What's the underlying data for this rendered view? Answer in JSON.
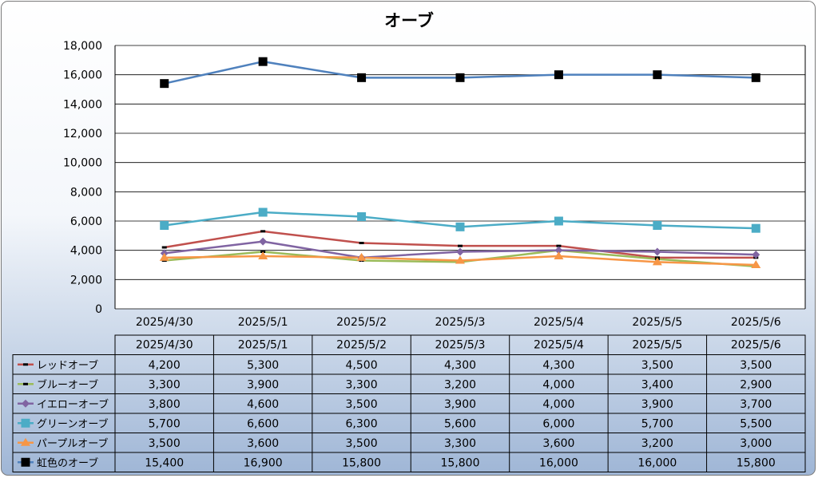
{
  "chart_data": {
    "type": "line",
    "title": "オーブ",
    "x": [
      "2025/4/30",
      "2025/5/1",
      "2025/5/2",
      "2025/5/3",
      "2025/5/4",
      "2025/5/5",
      "2025/5/6"
    ],
    "ylim": [
      0,
      18000
    ],
    "yticks": [
      "0",
      "2,000",
      "4,000",
      "6,000",
      "8,000",
      "10,000",
      "12,000",
      "14,000",
      "16,000",
      "18,000"
    ],
    "grid": true,
    "legend": "data-table",
    "series": [
      {
        "name": "レッドオーブ",
        "color": "#c0504d",
        "marker": "dash",
        "values": [
          4200,
          5300,
          4500,
          4300,
          4300,
          3500,
          3500
        ],
        "labels": [
          "4,200",
          "5,300",
          "4,500",
          "4,300",
          "4,300",
          "3,500",
          "3,500"
        ]
      },
      {
        "name": "ブルーオーブ",
        "color": "#9bbb59",
        "marker": "dash",
        "values": [
          3300,
          3900,
          3300,
          3200,
          4000,
          3400,
          2900
        ],
        "labels": [
          "3,300",
          "3,900",
          "3,300",
          "3,200",
          "4,000",
          "3,400",
          "2,900"
        ]
      },
      {
        "name": "イエローオーブ",
        "color": "#8064a2",
        "marker": "diamond",
        "values": [
          3800,
          4600,
          3500,
          3900,
          4000,
          3900,
          3700
        ],
        "labels": [
          "3,800",
          "4,600",
          "3,500",
          "3,900",
          "4,000",
          "3,900",
          "3,700"
        ]
      },
      {
        "name": "グリーンオーブ",
        "color": "#4bacc6",
        "marker": "square",
        "values": [
          5700,
          6600,
          6300,
          5600,
          6000,
          5700,
          5500
        ],
        "labels": [
          "5,700",
          "6,600",
          "6,300",
          "5,600",
          "6,000",
          "5,700",
          "5,500"
        ]
      },
      {
        "name": "パープルオーブ",
        "color": "#f79646",
        "marker": "triangle",
        "values": [
          3500,
          3600,
          3500,
          3300,
          3600,
          3200,
          3000
        ],
        "labels": [
          "3,500",
          "3,600",
          "3,500",
          "3,300",
          "3,600",
          "3,200",
          "3,000"
        ]
      },
      {
        "name": "虹色のオーブ",
        "color": "#4f81bd",
        "marker": "blacksquare",
        "values": [
          15400,
          16900,
          15800,
          15800,
          16000,
          16000,
          15800
        ],
        "labels": [
          "15,400",
          "16,900",
          "15,800",
          "15,800",
          "16,000",
          "16,000",
          "15,800"
        ]
      }
    ]
  }
}
